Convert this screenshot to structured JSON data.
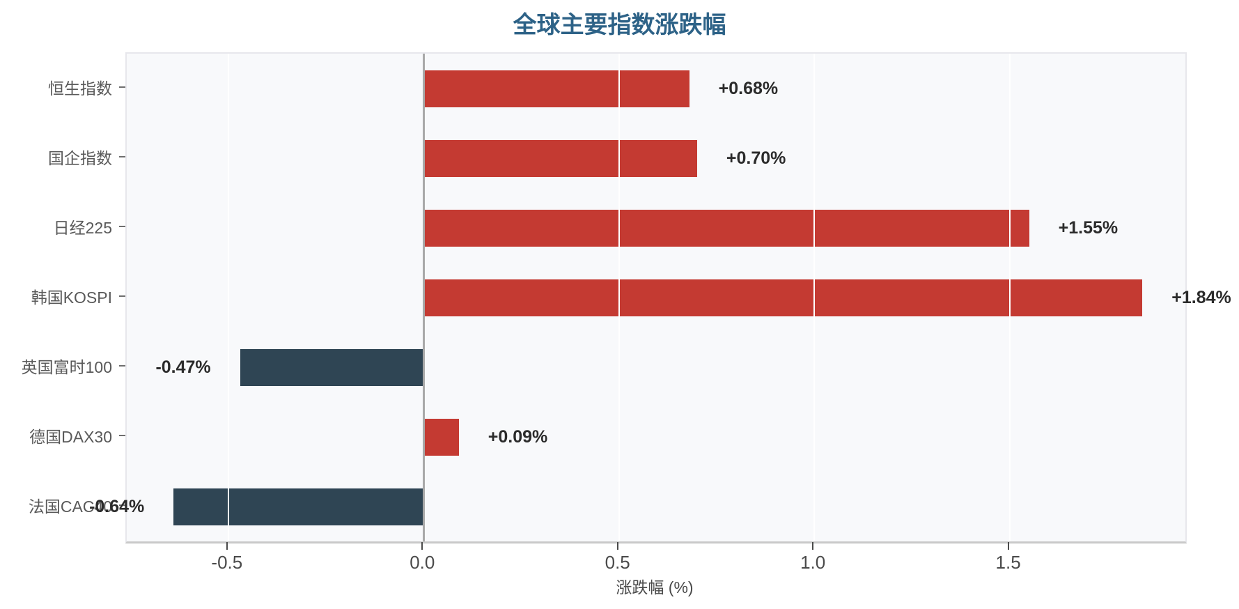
{
  "title": "全球主要指数涨跌幅",
  "x_axis_title": "涨跌幅 (%)",
  "chart_data": {
    "type": "bar",
    "orientation": "horizontal",
    "title": "全球主要指数涨跌幅",
    "xlabel": "涨跌幅 (%)",
    "ylabel": "",
    "categories": [
      "恒生指数",
      "国企指数",
      "日经225",
      "韩国KOSPI",
      "英国富时100",
      "德国DAX30",
      "法国CAC40"
    ],
    "values": [
      0.68,
      0.7,
      1.55,
      1.84,
      -0.47,
      0.09,
      -0.64
    ],
    "bar_labels": [
      "+0.68%",
      "+0.70%",
      "+1.55%",
      "+1.84%",
      "-0.47%",
      "+0.09%",
      "-0.64%"
    ],
    "xlim": [
      -0.76,
      1.95
    ],
    "xticks": {
      "values": [
        -0.5,
        0.0,
        0.5,
        1.0,
        1.5
      ],
      "labels": [
        "-0.5",
        "0.0",
        "0.5",
        "1.0",
        "1.5"
      ]
    },
    "grid": true,
    "legend": false,
    "colors": {
      "positive_bar": "#c43a32",
      "negative_bar": "#2f4554",
      "title_text": "#2d6287",
      "plot_background": "#f8f9fb",
      "gridline": "#ffffff",
      "zero_line": "#a8a8a8",
      "axis_text": "#4a4a4a",
      "category_text": "#595959",
      "value_text": "#2b2b2b"
    }
  }
}
